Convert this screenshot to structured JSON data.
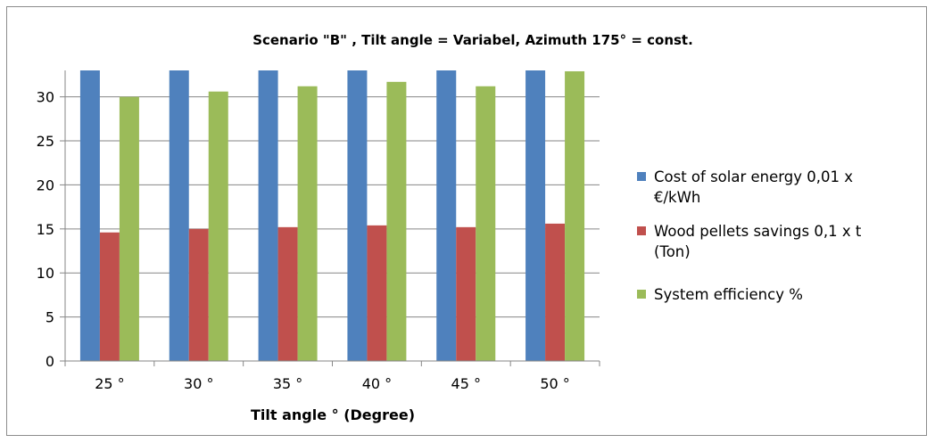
{
  "chart_data": {
    "type": "bar",
    "title": "Scenario \"B\" , Tilt angle  = Variabel, Azimuth 175° =  const.",
    "xlabel": "Tilt angle ° (Degree)",
    "ylabel": "",
    "ylim": [
      0,
      33
    ],
    "yticks": [
      0,
      5,
      10,
      15,
      20,
      25,
      30
    ],
    "categories": [
      "25 °",
      "30 °",
      "35 °",
      "40 °",
      "45 °",
      "50 °"
    ],
    "grid": true,
    "legend_position": "right",
    "series": [
      {
        "name": "Cost of solar energy 0,01 x €/kWh",
        "color": "#4F81BD",
        "values": [
          33,
          33,
          33,
          33,
          33,
          33
        ]
      },
      {
        "name": "Wood pellets savings 0,1 x t (Ton)",
        "color": "#C0504D",
        "values": [
          14.6,
          15.0,
          15.2,
          15.4,
          15.2,
          15.6
        ]
      },
      {
        "name": "System efficiency %",
        "color": "#9BBB59",
        "values": [
          30.0,
          30.6,
          31.2,
          31.7,
          31.2,
          32.9
        ]
      }
    ],
    "legend": [
      {
        "lines": [
          "Cost of solar energy 0,01 x",
          "€/kWh"
        ]
      },
      {
        "lines": [
          "Wood pellets savings 0,1 x t",
          "(Ton)"
        ]
      },
      {
        "lines": [
          "System efficiency %"
        ]
      }
    ]
  }
}
